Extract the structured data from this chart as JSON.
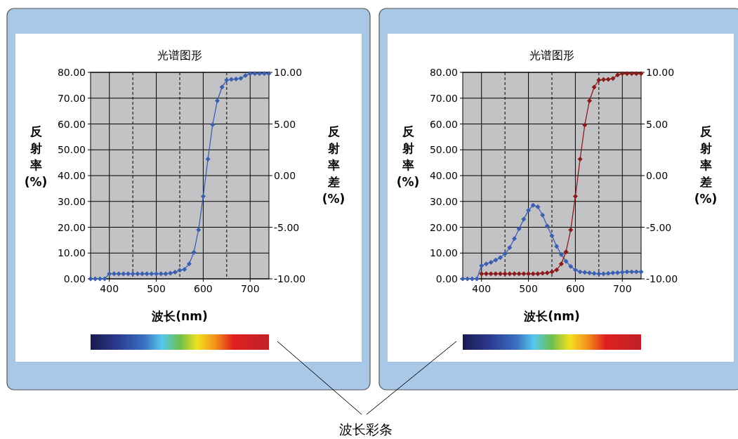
{
  "chart_data": [
    {
      "type": "line",
      "title": "光谱图形",
      "xlabel": "波长(nm)",
      "ylabel": "反射率 (%)",
      "y2label": "反射率差 (%)",
      "marker": "diamond",
      "grid": true,
      "x": [
        360,
        370,
        380,
        390,
        400,
        410,
        420,
        430,
        440,
        450,
        460,
        470,
        480,
        490,
        500,
        510,
        520,
        530,
        540,
        550,
        560,
        570,
        580,
        590,
        600,
        610,
        620,
        630,
        640,
        650,
        660,
        670,
        680,
        690,
        700,
        710,
        720,
        730,
        740
      ],
      "series": [
        {
          "color": "#3a5fb0",
          "values": [
            0,
            0,
            0,
            0,
            2,
            2,
            2,
            2,
            2,
            2,
            2,
            2,
            2,
            2,
            2,
            2,
            2,
            2.2,
            2.6,
            3.3,
            3.7,
            5.8,
            10.3,
            19,
            32,
            46.4,
            59.7,
            69,
            74.3,
            77,
            77.3,
            77.4,
            77.7,
            78.8,
            79.5,
            79.5,
            79.5,
            79.5,
            79.5
          ]
        }
      ],
      "xlim": [
        360,
        740
      ],
      "xticks": [
        400,
        500,
        600,
        700
      ],
      "ylim": [
        0,
        80
      ],
      "yticks": [
        {
          "value": 0,
          "label": "0.00"
        },
        {
          "value": 10,
          "label": "10.00"
        },
        {
          "value": 20,
          "label": "20.00"
        },
        {
          "value": 30,
          "label": "30.00"
        },
        {
          "value": 40,
          "label": "40.00"
        },
        {
          "value": 50,
          "label": "50.00"
        },
        {
          "value": 60,
          "label": "60.00"
        },
        {
          "value": 70,
          "label": "70.00"
        },
        {
          "value": 80,
          "label": "80.00"
        }
      ],
      "y2lim": [
        -10,
        10
      ],
      "y2ticks": [
        {
          "value": -10,
          "label": "-10.00"
        },
        {
          "value": -5,
          "label": "-5.00"
        },
        {
          "value": 0,
          "label": "0.00"
        },
        {
          "value": 5,
          "label": "5.00"
        },
        {
          "value": 10,
          "label": "10.00"
        }
      ],
      "ref_lines": [
        {
          "axis": "x",
          "value": 450,
          "line_style": "dashed"
        },
        {
          "axis": "x",
          "value": 550,
          "line_style": "dashed"
        },
        {
          "axis": "x",
          "value": 650,
          "line_style": "dashed"
        }
      ],
      "annotations": [
        "波长彩条"
      ]
    },
    {
      "type": "line",
      "title": "光谱图形",
      "xlabel": "波长(nm)",
      "ylabel": "反射率 (%)",
      "y2label": "反射率差 (%)",
      "marker": "diamond",
      "grid": true,
      "x": [
        360,
        370,
        380,
        390,
        400,
        410,
        420,
        430,
        440,
        450,
        460,
        470,
        480,
        490,
        500,
        510,
        520,
        530,
        540,
        550,
        560,
        570,
        580,
        590,
        600,
        610,
        620,
        630,
        640,
        650,
        660,
        670,
        680,
        690,
        700,
        710,
        720,
        730,
        740
      ],
      "series": [
        {
          "color": "#3a5fb0",
          "values": [
            0,
            0,
            0,
            0,
            5.1,
            5.8,
            6.4,
            7.3,
            8.2,
            9.7,
            12.1,
            15.6,
            19.4,
            23.1,
            26.5,
            28.5,
            27.9,
            24.7,
            20.5,
            16.7,
            12.6,
            9.4,
            6.8,
            4.8,
            3.5,
            2.7,
            2.5,
            2.3,
            2.1,
            2,
            2,
            2.1,
            2.3,
            2.4,
            2.6,
            2.7,
            2.7,
            2.7,
            2.7
          ]
        },
        {
          "color": "#8b1a1a",
          "values": [
            null,
            null,
            null,
            null,
            2,
            2,
            2,
            2,
            2,
            2,
            2,
            2,
            2,
            2,
            2,
            2,
            2,
            2.2,
            2.3,
            2.7,
            3.5,
            5.8,
            10.5,
            19,
            32,
            46.4,
            59.6,
            69,
            74.3,
            77,
            77.2,
            77.3,
            77.6,
            79,
            79.5,
            79.5,
            79.5,
            79.5,
            79.5
          ]
        }
      ],
      "xlim": [
        360,
        740
      ],
      "xticks": [
        400,
        500,
        600,
        700
      ],
      "ylim": [
        0,
        80
      ],
      "yticks": [
        {
          "value": 0,
          "label": "0.00"
        },
        {
          "value": 10,
          "label": "10.00"
        },
        {
          "value": 20,
          "label": "20.00"
        },
        {
          "value": 30,
          "label": "30.00"
        },
        {
          "value": 40,
          "label": "40.00"
        },
        {
          "value": 50,
          "label": "50.00"
        },
        {
          "value": 60,
          "label": "60.00"
        },
        {
          "value": 70,
          "label": "70.00"
        },
        {
          "value": 80,
          "label": "80.00"
        }
      ],
      "y2lim": [
        -10,
        10
      ],
      "y2ticks": [
        {
          "value": -10,
          "label": "-10.00"
        },
        {
          "value": -5,
          "label": "-5.00"
        },
        {
          "value": 0,
          "label": "0.00"
        },
        {
          "value": 5,
          "label": "5.00"
        },
        {
          "value": 10,
          "label": "10.00"
        }
      ],
      "ref_lines": [
        {
          "axis": "x",
          "value": 450,
          "line_style": "dashed"
        },
        {
          "axis": "x",
          "value": 550,
          "line_style": "dashed"
        },
        {
          "axis": "x",
          "value": 650,
          "line_style": "dashed"
        }
      ]
    }
  ]
}
